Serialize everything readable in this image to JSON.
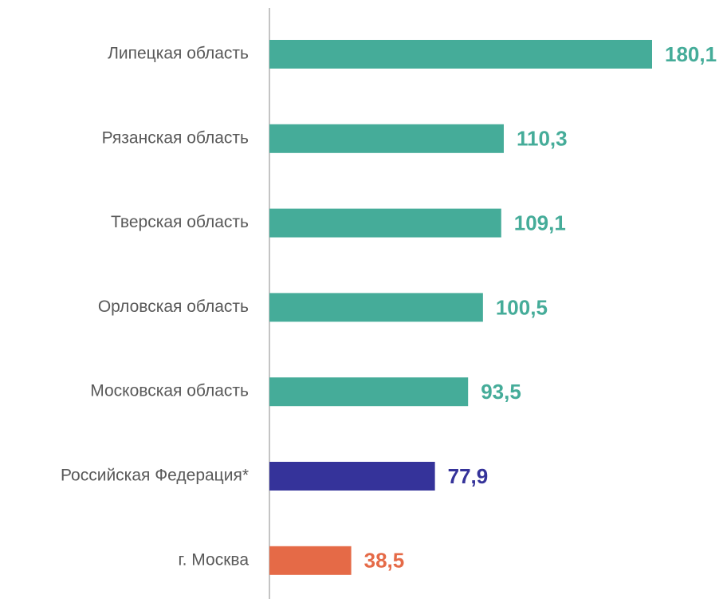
{
  "chart_data": {
    "type": "hbar",
    "categories": [
      "Липецкая область",
      "Рязанская область",
      "Тверская область",
      "Орловская область",
      "Московская область",
      "Российская Федерация*",
      "г. Москва"
    ],
    "values": [
      180.1,
      110.3,
      109.1,
      100.5,
      93.5,
      77.9,
      38.5
    ],
    "value_labels": [
      "180,1",
      "110,3",
      "109,1",
      "100,5",
      "93,5",
      "77,9",
      "38,5"
    ],
    "colors": [
      "#45ac99",
      "#45ac99",
      "#45ac99",
      "#45ac99",
      "#45ac99",
      "#35339a",
      "#e56a47"
    ]
  }
}
